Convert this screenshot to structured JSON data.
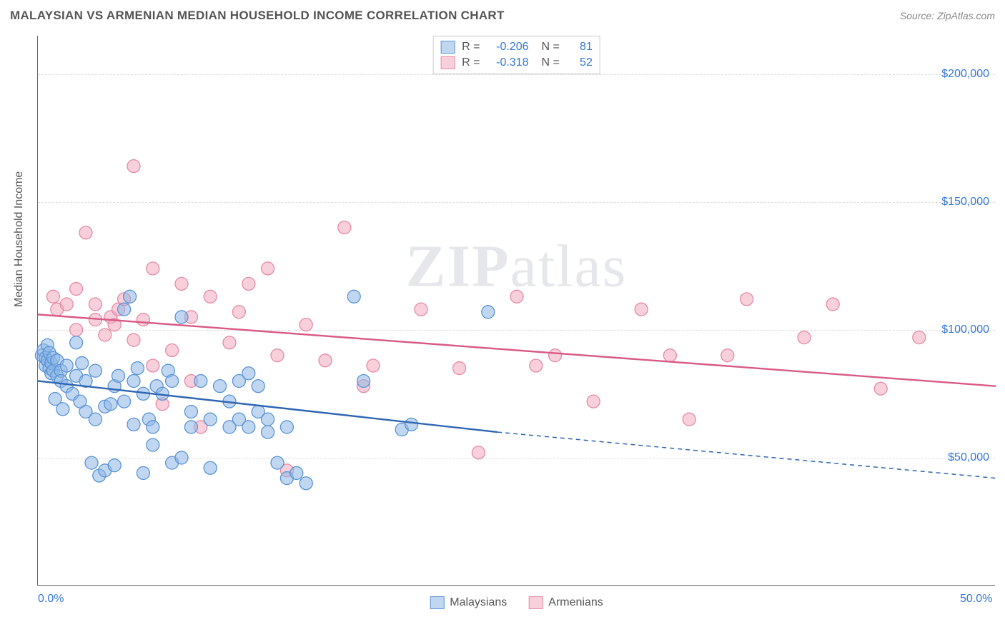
{
  "title": "MALAYSIAN VS ARMENIAN MEDIAN HOUSEHOLD INCOME CORRELATION CHART",
  "source_label": "Source: ",
  "source_name": "ZipAtlas.com",
  "watermark": "ZIPatlas",
  "y_axis_title": "Median Household Income",
  "chart": {
    "type": "scatter",
    "background_color": "#ffffff",
    "xlim": [
      0,
      50
    ],
    "ylim": [
      0,
      215000
    ],
    "x_ticks": [
      {
        "pos": 0,
        "label": "0.0%"
      },
      {
        "pos": 50,
        "label": "50.0%"
      }
    ],
    "y_ticks": [
      {
        "pos": 50000,
        "label": "$50,000"
      },
      {
        "pos": 100000,
        "label": "$100,000"
      },
      {
        "pos": 150000,
        "label": "$150,000"
      },
      {
        "pos": 200000,
        "label": "$200,000"
      }
    ],
    "grid_color": "#dddddd",
    "series": [
      {
        "name": "Malaysians",
        "marker_fill": "rgba(142,182,230,0.55)",
        "marker_stroke": "#5a94d6",
        "line_color": "#2f66b3",
        "line_width": 2.4,
        "marker_radius": 9,
        "R": "-0.206",
        "N": "81",
        "trend_solid": {
          "x1": 0,
          "y1": 80000,
          "x2": 24,
          "y2": 60000
        },
        "trend_dashed": {
          "x1": 24,
          "y1": 60000,
          "x2": 50,
          "y2": 42000
        },
        "points": [
          [
            0.2,
            90000
          ],
          [
            0.3,
            92000
          ],
          [
            0.4,
            89000
          ],
          [
            0.4,
            86000
          ],
          [
            0.5,
            94000
          ],
          [
            0.5,
            88000
          ],
          [
            0.6,
            85000
          ],
          [
            0.6,
            91000
          ],
          [
            0.7,
            83000
          ],
          [
            0.7,
            87000
          ],
          [
            0.8,
            89000
          ],
          [
            0.8,
            84000
          ],
          [
            1.0,
            88000
          ],
          [
            1.0,
            82000
          ],
          [
            1.2,
            84000
          ],
          [
            1.2,
            80000
          ],
          [
            1.5,
            86000
          ],
          [
            1.5,
            78000
          ],
          [
            1.8,
            75000
          ],
          [
            2.0,
            82000
          ],
          [
            2.0,
            95000
          ],
          [
            2.2,
            72000
          ],
          [
            2.5,
            80000
          ],
          [
            2.5,
            68000
          ],
          [
            2.8,
            48000
          ],
          [
            3.0,
            84000
          ],
          [
            3.0,
            65000
          ],
          [
            3.2,
            43000
          ],
          [
            3.5,
            45000
          ],
          [
            3.5,
            70000
          ],
          [
            3.8,
            71000
          ],
          [
            4.0,
            47000
          ],
          [
            4.0,
            78000
          ],
          [
            4.2,
            82000
          ],
          [
            4.5,
            72000
          ],
          [
            4.5,
            108000
          ],
          [
            4.8,
            113000
          ],
          [
            5.0,
            80000
          ],
          [
            5.0,
            63000
          ],
          [
            5.2,
            85000
          ],
          [
            5.5,
            44000
          ],
          [
            5.5,
            75000
          ],
          [
            5.8,
            65000
          ],
          [
            6.0,
            62000
          ],
          [
            6.0,
            55000
          ],
          [
            6.2,
            78000
          ],
          [
            6.5,
            75000
          ],
          [
            6.8,
            84000
          ],
          [
            7.0,
            48000
          ],
          [
            7.0,
            80000
          ],
          [
            7.5,
            105000
          ],
          [
            7.5,
            50000
          ],
          [
            8.0,
            62000
          ],
          [
            8.0,
            68000
          ],
          [
            8.5,
            80000
          ],
          [
            9.0,
            65000
          ],
          [
            9.0,
            46000
          ],
          [
            9.5,
            78000
          ],
          [
            10.0,
            62000
          ],
          [
            10.0,
            72000
          ],
          [
            10.5,
            80000
          ],
          [
            10.5,
            65000
          ],
          [
            11.0,
            62000
          ],
          [
            11.0,
            83000
          ],
          [
            11.5,
            78000
          ],
          [
            11.5,
            68000
          ],
          [
            12.0,
            65000
          ],
          [
            12.0,
            60000
          ],
          [
            12.5,
            48000
          ],
          [
            13.0,
            42000
          ],
          [
            13.0,
            62000
          ],
          [
            13.5,
            44000
          ],
          [
            14.0,
            40000
          ],
          [
            16.5,
            113000
          ],
          [
            17.0,
            80000
          ],
          [
            19.0,
            61000
          ],
          [
            19.5,
            63000
          ],
          [
            23.5,
            107000
          ],
          [
            0.9,
            73000
          ],
          [
            1.3,
            69000
          ],
          [
            2.3,
            87000
          ]
        ]
      },
      {
        "name": "Armenians",
        "marker_fill": "rgba(240,170,190,0.55)",
        "marker_stroke": "#e68aa6",
        "line_color": "#d85a84",
        "line_width": 2.4,
        "marker_radius": 9,
        "R": "-0.318",
        "N": "52",
        "trend_solid": {
          "x1": 0,
          "y1": 106000,
          "x2": 50,
          "y2": 78000
        },
        "trend_dashed": null,
        "points": [
          [
            0.8,
            113000
          ],
          [
            1.0,
            108000
          ],
          [
            1.5,
            110000
          ],
          [
            2.0,
            116000
          ],
          [
            2.0,
            100000
          ],
          [
            2.5,
            138000
          ],
          [
            3.0,
            104000
          ],
          [
            3.0,
            110000
          ],
          [
            3.5,
            98000
          ],
          [
            3.8,
            105000
          ],
          [
            4.0,
            102000
          ],
          [
            4.2,
            108000
          ],
          [
            4.5,
            112000
          ],
          [
            5.0,
            96000
          ],
          [
            5.0,
            164000
          ],
          [
            5.5,
            104000
          ],
          [
            6.0,
            124000
          ],
          [
            6.0,
            86000
          ],
          [
            6.5,
            71000
          ],
          [
            7.0,
            92000
          ],
          [
            7.5,
            118000
          ],
          [
            8.0,
            80000
          ],
          [
            8.0,
            105000
          ],
          [
            8.5,
            62000
          ],
          [
            9.0,
            113000
          ],
          [
            10.0,
            95000
          ],
          [
            10.5,
            107000
          ],
          [
            11.0,
            118000
          ],
          [
            12.0,
            124000
          ],
          [
            12.5,
            90000
          ],
          [
            13.0,
            45000
          ],
          [
            14.0,
            102000
          ],
          [
            15.0,
            88000
          ],
          [
            16.0,
            140000
          ],
          [
            17.0,
            78000
          ],
          [
            17.5,
            86000
          ],
          [
            20.0,
            108000
          ],
          [
            22.0,
            85000
          ],
          [
            23.0,
            52000
          ],
          [
            25.0,
            113000
          ],
          [
            26.0,
            86000
          ],
          [
            27.0,
            90000
          ],
          [
            29.0,
            72000
          ],
          [
            31.5,
            108000
          ],
          [
            33.0,
            90000
          ],
          [
            34.0,
            65000
          ],
          [
            36.0,
            90000
          ],
          [
            37.0,
            112000
          ],
          [
            40.0,
            97000
          ],
          [
            41.5,
            110000
          ],
          [
            44.0,
            77000
          ],
          [
            46.0,
            97000
          ]
        ]
      }
    ]
  }
}
